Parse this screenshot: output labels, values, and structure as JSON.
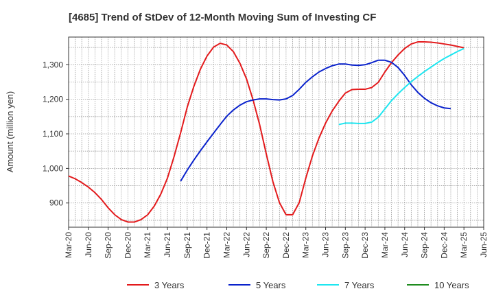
{
  "chart_data": {
    "type": "line",
    "title": "[4685]  Trend of StDev of 12-Month Moving Sum of Investing CF",
    "xlabel": "",
    "ylabel": "Amount (million yen)",
    "ylim": [
      830,
      1380
    ],
    "yticks": [
      900,
      1000,
      1100,
      1200,
      1300
    ],
    "ytick_labels": [
      "900",
      "1,000",
      "1,100",
      "1,200",
      "1,300"
    ],
    "xticks": [
      "Mar-20",
      "Jun-20",
      "Sep-20",
      "Dec-20",
      "Mar-21",
      "Jun-21",
      "Sep-21",
      "Dec-21",
      "Mar-22",
      "Jun-22",
      "Sep-22",
      "Dec-22",
      "Mar-23",
      "Jun-23",
      "Sep-23",
      "Dec-23",
      "Mar-24",
      "Jun-24",
      "Sep-24",
      "Dec-24",
      "Mar-25",
      "Jun-25"
    ],
    "grid": true,
    "legend_position": "bottom",
    "series": [
      {
        "name": "3 Years",
        "color": "#e31a1c",
        "start": "2020-03",
        "values": [
          978,
          970,
          959,
          946,
          930,
          910,
          886,
          866,
          852,
          845,
          845,
          852,
          866,
          891,
          926,
          972,
          1034,
          1103,
          1177,
          1237,
          1287,
          1325,
          1351,
          1362,
          1357,
          1338,
          1304,
          1259,
          1198,
          1126,
          1042,
          962,
          901,
          866,
          866,
          901,
          972,
          1036,
          1088,
          1131,
          1166,
          1194,
          1218,
          1228,
          1229,
          1229,
          1234,
          1249,
          1279,
          1306,
          1328,
          1347,
          1360,
          1366,
          1366,
          1365,
          1363,
          1360,
          1357,
          1353,
          1349
        ]
      },
      {
        "name": "5 Years",
        "color": "#0a22cc",
        "start": "2021-08",
        "values": [
          963,
          995,
          1024,
          1051,
          1077,
          1102,
          1127,
          1151,
          1169,
          1183,
          1193,
          1198,
          1201,
          1201,
          1199,
          1198,
          1201,
          1211,
          1229,
          1249,
          1265,
          1279,
          1289,
          1297,
          1302,
          1302,
          1299,
          1298,
          1300,
          1306,
          1313,
          1313,
          1307,
          1292,
          1269,
          1242,
          1220,
          1203,
          1190,
          1181,
          1175,
          1173
        ]
      },
      {
        "name": "7 Years",
        "color": "#1ee6f0",
        "start": "2023-08",
        "values": [
          1127,
          1131,
          1131,
          1130,
          1130,
          1134,
          1148,
          1172,
          1196,
          1216,
          1234,
          1251,
          1266,
          1280,
          1293,
          1306,
          1318,
          1328,
          1338,
          1347
        ]
      },
      {
        "name": "10 Years",
        "color": "#1f8c1f",
        "start": "2023-08",
        "values": []
      }
    ]
  }
}
